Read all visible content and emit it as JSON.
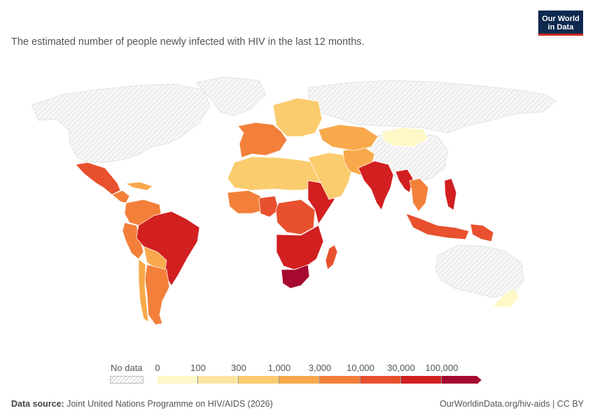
{
  "logo": {
    "line1": "Our World",
    "line2": "in Data"
  },
  "subtitle": "The estimated number of people newly infected with HIV in the last 12 months.",
  "legend": {
    "no_data_label": "No data",
    "ticks": [
      "0",
      "100",
      "300",
      "1,000",
      "3,000",
      "10,000",
      "30,000",
      "100,000"
    ],
    "colors": [
      "#fef8c8",
      "#fce4a0",
      "#fbcc6e",
      "#f8a94b",
      "#f2803a",
      "#e8502e",
      "#d21f20",
      "#a50a2e"
    ]
  },
  "source": {
    "label": "Data source:",
    "text": "Joint United Nations Programme on HIV/AIDS (2026)"
  },
  "footer_right": "OurWorldinData.org/hiv-aids | CC BY",
  "regions": [
    {
      "name": "north-america",
      "color": "nodata"
    },
    {
      "name": "greenland",
      "color": "nodata"
    },
    {
      "name": "russia",
      "color": "nodata"
    },
    {
      "name": "china",
      "color": "nodata"
    },
    {
      "name": "australia",
      "color": "nodata"
    },
    {
      "name": "mexico",
      "color": "#e8502e"
    },
    {
      "name": "central-america",
      "color": "#f2803a"
    },
    {
      "name": "caribbean",
      "color": "#f8a94b"
    },
    {
      "name": "colombia-venezuela",
      "color": "#f2803a"
    },
    {
      "name": "peru",
      "color": "#f2803a"
    },
    {
      "name": "bolivia-paraguay",
      "color": "#f8a94b"
    },
    {
      "name": "brazil",
      "color": "#d21f20"
    },
    {
      "name": "argentina",
      "color": "#f2803a"
    },
    {
      "name": "chile",
      "color": "#f8a94b"
    },
    {
      "name": "western-europe",
      "color": "#f2803a"
    },
    {
      "name": "eastern-europe",
      "color": "#fbcc6e"
    },
    {
      "name": "north-africa",
      "color": "#fbcc6e"
    },
    {
      "name": "west-africa",
      "color": "#f2803a"
    },
    {
      "name": "nigeria",
      "color": "#e8502e"
    },
    {
      "name": "central-africa",
      "color": "#e8502e"
    },
    {
      "name": "east-africa",
      "color": "#d21f20"
    },
    {
      "name": "southern-africa",
      "color": "#d21f20"
    },
    {
      "name": "south-africa",
      "color": "#a50a2e"
    },
    {
      "name": "madagascar",
      "color": "#e8502e"
    },
    {
      "name": "middle-east",
      "color": "#fbcc6e"
    },
    {
      "name": "iran-afghanistan",
      "color": "#f8a94b"
    },
    {
      "name": "kazakhstan",
      "color": "#f8a94b"
    },
    {
      "name": "mongolia",
      "color": "#fef8c8"
    },
    {
      "name": "india",
      "color": "#d21f20"
    },
    {
      "name": "myanmar",
      "color": "#d21f20"
    },
    {
      "name": "southeast-asia",
      "color": "#f2803a"
    },
    {
      "name": "philippines",
      "color": "#d21f20"
    },
    {
      "name": "indonesia",
      "color": "#e8502e"
    },
    {
      "name": "papua-new-guinea",
      "color": "#e8502e"
    },
    {
      "name": "new-zealand",
      "color": "#fef8c8"
    }
  ]
}
